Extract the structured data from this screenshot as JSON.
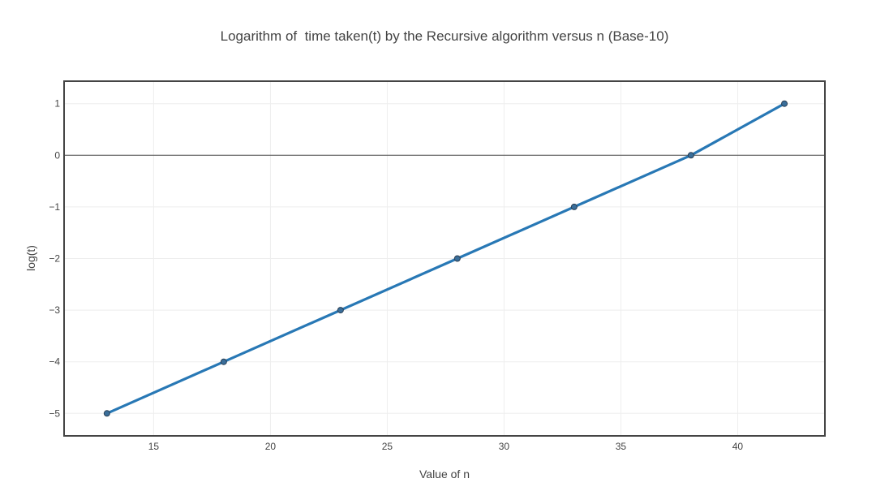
{
  "chart_data": {
    "type": "line",
    "title": "Logarithm of  time taken(t) by the Recursive algorithm versus n (Base-10)",
    "xlabel": "Value of n",
    "ylabel": "log(t)",
    "xlim": [
      11.2,
      43.7
    ],
    "ylim": [
      -5.42,
      1.42
    ],
    "x_ticks": [
      15,
      20,
      25,
      30,
      35,
      40
    ],
    "y_ticks": [
      1,
      0,
      -1,
      -2,
      -3,
      -4,
      -5
    ],
    "grid": true,
    "series": [
      {
        "x": [
          13,
          18,
          23,
          28,
          33,
          38,
          42
        ],
        "y": [
          -5,
          -4,
          -3,
          -2,
          -1,
          0,
          1
        ],
        "line_color": "#2878b5",
        "marker_color": "#3a6e9a",
        "marker_edge": "#2a3f54"
      }
    ]
  }
}
